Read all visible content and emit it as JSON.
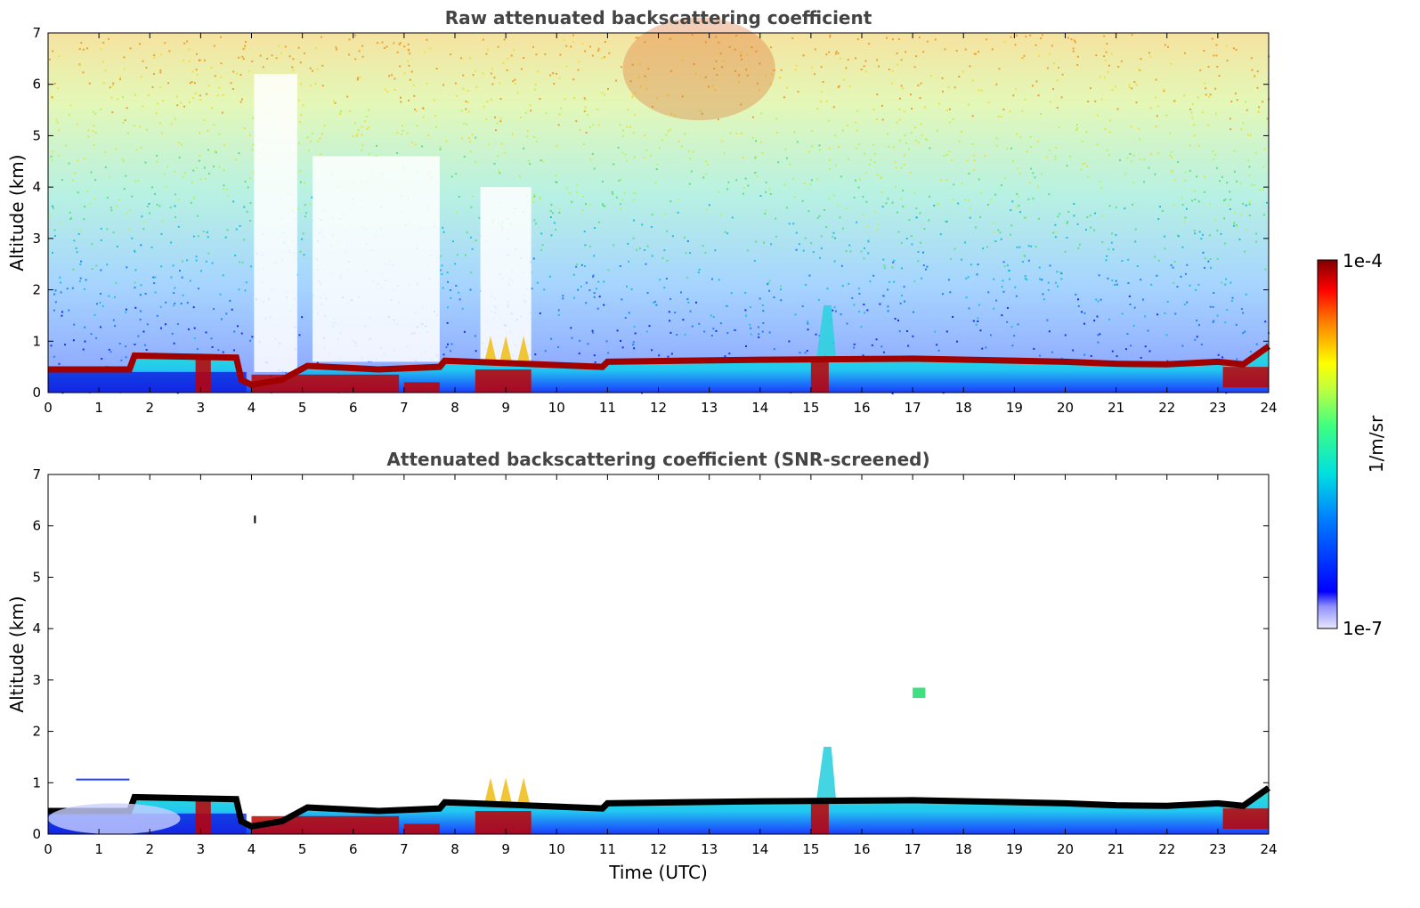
{
  "chart_data": [
    {
      "type": "heatmap",
      "title": "Raw attenuated backscattering coefficient",
      "xlabel": "",
      "ylabel": "Altitude (km)",
      "xlim": [
        0,
        24
      ],
      "ylim": [
        0,
        7
      ],
      "xticks": [
        "0",
        "1",
        "2",
        "3",
        "4",
        "5",
        "6",
        "7",
        "8",
        "9",
        "10",
        "11",
        "12",
        "13",
        "14",
        "15",
        "16",
        "17",
        "18",
        "19",
        "20",
        "21",
        "22",
        "23",
        "24"
      ],
      "yticks": [
        "0",
        "1",
        "2",
        "3",
        "4",
        "5",
        "6",
        "7"
      ],
      "screened": false,
      "boundary_layer_top_km": [
        [
          0,
          0.45
        ],
        [
          1.6,
          0.45
        ],
        [
          1.7,
          0.72
        ],
        [
          3.7,
          0.68
        ],
        [
          3.8,
          0.25
        ],
        [
          4.0,
          0.15
        ],
        [
          4.6,
          0.25
        ],
        [
          5.1,
          0.52
        ],
        [
          6.5,
          0.45
        ],
        [
          7.7,
          0.5
        ],
        [
          7.8,
          0.62
        ],
        [
          10.9,
          0.5
        ],
        [
          11.0,
          0.6
        ],
        [
          14.0,
          0.64
        ],
        [
          17.0,
          0.66
        ],
        [
          20.0,
          0.6
        ],
        [
          21.0,
          0.56
        ],
        [
          22.0,
          0.55
        ],
        [
          23.0,
          0.6
        ],
        [
          23.5,
          0.55
        ],
        [
          24.0,
          0.9
        ]
      ]
    },
    {
      "type": "heatmap",
      "title": "Attenuated backscattering coefficient (SNR-screened)",
      "xlabel": "Time (UTC)",
      "ylabel": "Altitude (km)",
      "xlim": [
        0,
        24
      ],
      "ylim": [
        0,
        7
      ],
      "xticks": [
        "0",
        "1",
        "2",
        "3",
        "4",
        "5",
        "6",
        "7",
        "8",
        "9",
        "10",
        "11",
        "12",
        "13",
        "14",
        "15",
        "16",
        "17",
        "18",
        "19",
        "20",
        "21",
        "22",
        "23",
        "24"
      ],
      "yticks": [
        "0",
        "1",
        "2",
        "3",
        "4",
        "5",
        "6",
        "7"
      ],
      "screened": true,
      "boundary_layer_top_km": [
        [
          0,
          0.45
        ],
        [
          1.6,
          0.45
        ],
        [
          1.7,
          0.72
        ],
        [
          3.7,
          0.68
        ],
        [
          3.8,
          0.25
        ],
        [
          4.0,
          0.15
        ],
        [
          4.6,
          0.25
        ],
        [
          5.1,
          0.52
        ],
        [
          6.5,
          0.45
        ],
        [
          7.7,
          0.5
        ],
        [
          7.8,
          0.62
        ],
        [
          10.9,
          0.5
        ],
        [
          11.0,
          0.6
        ],
        [
          14.0,
          0.64
        ],
        [
          17.0,
          0.66
        ],
        [
          20.0,
          0.6
        ],
        [
          21.0,
          0.56
        ],
        [
          22.0,
          0.55
        ],
        [
          23.0,
          0.6
        ],
        [
          23.5,
          0.55
        ],
        [
          24.0,
          0.9
        ]
      ]
    }
  ],
  "colorbar": {
    "label": "1/m/sr",
    "max_label": "1e-4",
    "min_label": "1e-7",
    "colormap": "jet",
    "colors": [
      "#e8e8ff",
      "#0000cc",
      "#0000ff",
      "#0080ff",
      "#00e0e0",
      "#40ff80",
      "#c0ff40",
      "#ffff00",
      "#ff8000",
      "#ff0000",
      "#800000"
    ]
  }
}
